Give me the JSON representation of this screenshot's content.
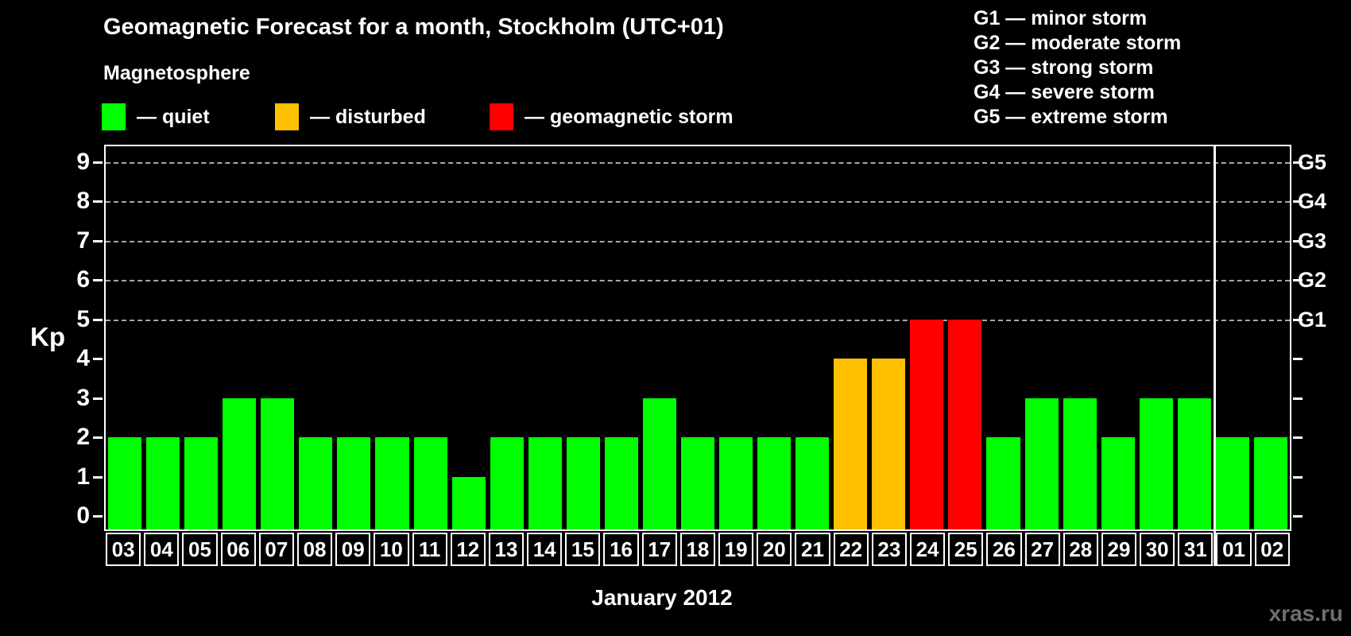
{
  "title": "Geomagnetic Forecast for a month, Stockholm (UTC+01)",
  "legend": {
    "heading": "Magnetosphere",
    "items": [
      {
        "status": "quiet",
        "label": "— quiet",
        "color": "#00ff00"
      },
      {
        "status": "disturbed",
        "label": "— disturbed",
        "color": "#ffc000"
      },
      {
        "status": "storm",
        "label": "— geomagnetic storm",
        "color": "#ff0000"
      }
    ]
  },
  "g_scale_legend": [
    "G1 — minor storm",
    "G2 — moderate storm",
    "G3 — strong storm",
    "G4 — severe storm",
    "G5 — extreme storm"
  ],
  "watermark": "xras.ru",
  "chart_data": {
    "type": "bar",
    "title": "Geomagnetic Forecast for a month, Stockholm (UTC+01)",
    "xlabel": "January 2012",
    "ylabel": "Kp",
    "ylim": [
      0,
      9
    ],
    "yticks": [
      0,
      1,
      2,
      3,
      4,
      5,
      6,
      7,
      8,
      9
    ],
    "gridlines_at": [
      5,
      6,
      7,
      8,
      9
    ],
    "grid_style": "dashed",
    "legend_position": "top",
    "right_axis_labels": [
      {
        "kp": 5,
        "label": "G1"
      },
      {
        "kp": 6,
        "label": "G2"
      },
      {
        "kp": 7,
        "label": "G3"
      },
      {
        "kp": 8,
        "label": "G4"
      },
      {
        "kp": 9,
        "label": "G5"
      }
    ],
    "categories": [
      "03",
      "04",
      "05",
      "06",
      "07",
      "08",
      "09",
      "10",
      "11",
      "12",
      "13",
      "14",
      "15",
      "16",
      "17",
      "18",
      "19",
      "20",
      "21",
      "22",
      "23",
      "24",
      "25",
      "26",
      "27",
      "28",
      "29",
      "30",
      "31",
      "01",
      "02"
    ],
    "values": [
      2,
      2,
      2,
      3,
      3,
      2,
      2,
      2,
      2,
      1,
      2,
      2,
      2,
      2,
      3,
      2,
      2,
      2,
      2,
      4,
      4,
      5,
      5,
      2,
      3,
      3,
      2,
      3,
      3,
      2,
      2
    ],
    "statuses": [
      "quiet",
      "quiet",
      "quiet",
      "quiet",
      "quiet",
      "quiet",
      "quiet",
      "quiet",
      "quiet",
      "quiet",
      "quiet",
      "quiet",
      "quiet",
      "quiet",
      "quiet",
      "quiet",
      "quiet",
      "quiet",
      "quiet",
      "disturbed",
      "disturbed",
      "storm",
      "storm",
      "quiet",
      "quiet",
      "quiet",
      "quiet",
      "quiet",
      "quiet",
      "quiet",
      "quiet"
    ],
    "colors": {
      "quiet": "#00ff00",
      "disturbed": "#ffc000",
      "storm": "#ff0000"
    },
    "month_separator_after_index": 28
  }
}
